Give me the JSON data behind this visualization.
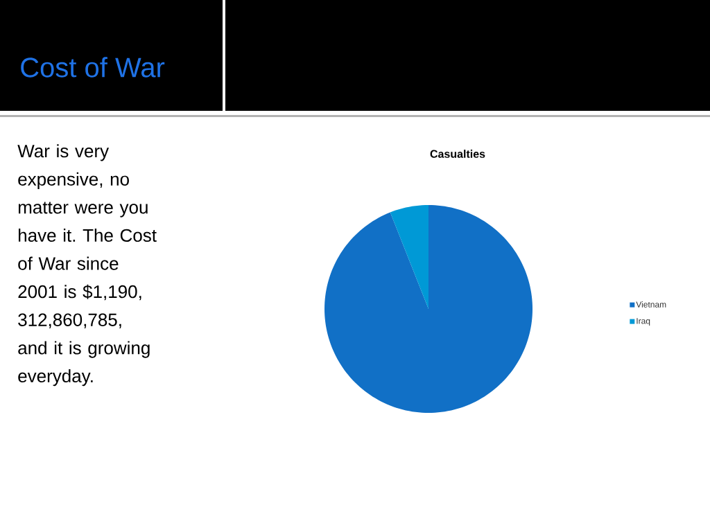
{
  "chart_data": {
    "type": "pie",
    "title": "Cost of War",
    "subtitle": "Casualties",
    "categories": [
      "Vietnam",
      "Iraq"
    ],
    "values": [
      94,
      6
    ],
    "colors": [
      "#1170c6",
      "#0099d6"
    ],
    "legend": "right",
    "annotations": [
      "War is very expensive, no matter were you have it. The Cost of War since 2001 is $1,190, 312,860,785, and it is growing everyday."
    ]
  }
}
